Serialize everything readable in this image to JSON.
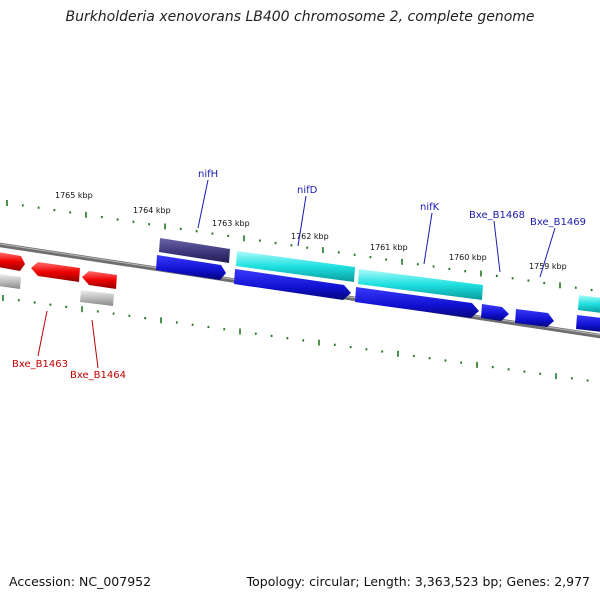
{
  "title": "Burkholderia xenovorans LB400 chromosome 2, complete genome",
  "footer": {
    "accession": "Accession: NC_007952",
    "summary": "Topology: circular; Length: 3,363,523 bp; Genes: 2,977"
  },
  "scale_labels": [
    "1765 kbp",
    "1764 kbp",
    "1763 kbp",
    "1762 kbp",
    "1761 kbp",
    "1760 kbp",
    "1759 kbp"
  ],
  "gene_labels": {
    "nifH": "nifH",
    "nifD": "nifD",
    "nifK": "nifK",
    "bxe_b1468": "Bxe_B1468",
    "bxe_b1469": "Bxe_B1469",
    "bxe_b1463": "Bxe_B1463",
    "bxe_b1464": "Bxe_B1464"
  },
  "colors": {
    "backbone": "#8a8a8a",
    "tick": "#1f7a1f",
    "blue_gene": "#1515d8",
    "cyan_gene": "#19d6d6",
    "navy_gene": "#3b3478",
    "red_gene": "#e60000",
    "grey_gene": "#b5b5b5",
    "blue_label": "#1a1ab0",
    "red_label": "#c00000"
  }
}
